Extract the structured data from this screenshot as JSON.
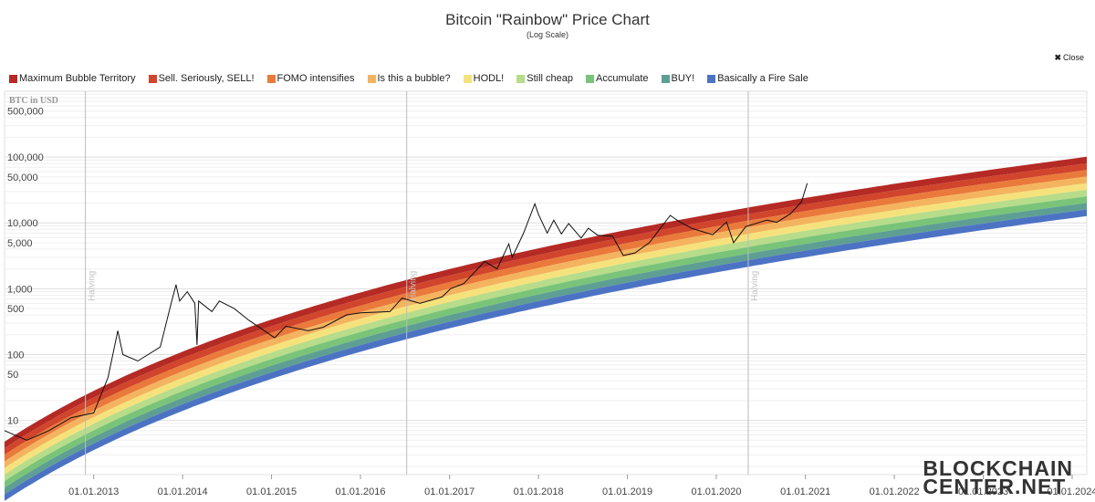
{
  "header": {
    "title": "Bitcoin \"Rainbow\" Price Chart",
    "subtitle": "(Log Scale)",
    "close_label": "Close"
  },
  "legend": [
    {
      "label": "Maximum Bubble Territory",
      "color": "#b52a25"
    },
    {
      "label": "Sell. Seriously, SELL!",
      "color": "#d0452c"
    },
    {
      "label": "FOMO intensifies",
      "color": "#ea7a3b"
    },
    {
      "label": "Is this a bubble?",
      "color": "#f4b45f"
    },
    {
      "label": "HODL!",
      "color": "#f6e27c"
    },
    {
      "label": "Still cheap",
      "color": "#b7dc8a"
    },
    {
      "label": "Accumulate",
      "color": "#79c478"
    },
    {
      "label": "BUY!",
      "color": "#5f9f93"
    },
    {
      "label": "Basically a Fire Sale",
      "color": "#4c73c3"
    }
  ],
  "watermark": {
    "line1": "BLOCKCHAIN",
    "line2": "CENTER.NET"
  },
  "chart_data": {
    "type": "line",
    "ylabel": "BTC in USD",
    "y_scale": "log",
    "y_ticks": [
      10,
      50,
      100,
      500,
      1000,
      5000,
      10000,
      50000,
      100000,
      500000
    ],
    "y_tick_labels": [
      "10",
      "50",
      "100",
      "500",
      "1,000",
      "5,000",
      "10,000",
      "50,000",
      "100,000",
      "500,000"
    ],
    "x_ticks": [
      "2013-01-01",
      "2014-01-01",
      "2015-01-01",
      "2016-01-01",
      "2017-01-01",
      "2018-01-01",
      "2019-01-01",
      "2020-01-01",
      "2021-01-01",
      "2022-01-01",
      "2023-01-01",
      "2024-01-01"
    ],
    "x_tick_labels": [
      "01.01.2013",
      "01.01.2014",
      "01.01.2015",
      "01.01.2016",
      "01.01.2017",
      "01.01.2018",
      "01.01.2019",
      "01.01.2020",
      "01.01.2021",
      "01.01.2022",
      "01.01.2023",
      "01.01.2024"
    ],
    "xlim": [
      "2012-01-01",
      "2024-03-01"
    ],
    "halvings": [
      {
        "date": "2012-11-28",
        "label": "Halving"
      },
      {
        "date": "2016-07-09",
        "label": "Halving"
      },
      {
        "date": "2020-05-11",
        "label": "Halving"
      },
      {
        "date": "2024-04-01",
        "label": "Halving"
      }
    ],
    "grid": true,
    "series": [
      {
        "name": "BTC price",
        "color": "#111111",
        "points": [
          [
            "2012-01-01",
            7
          ],
          [
            "2012-04-01",
            5
          ],
          [
            "2012-07-01",
            7
          ],
          [
            "2012-10-01",
            11
          ],
          [
            "2013-01-01",
            13
          ],
          [
            "2013-03-01",
            45
          ],
          [
            "2013-04-10",
            230
          ],
          [
            "2013-05-01",
            100
          ],
          [
            "2013-07-01",
            80
          ],
          [
            "2013-10-01",
            130
          ],
          [
            "2013-11-15",
            600
          ],
          [
            "2013-12-05",
            1150
          ],
          [
            "2013-12-20",
            650
          ],
          [
            "2014-01-20",
            900
          ],
          [
            "2014-02-20",
            600
          ],
          [
            "2014-03-01",
            140
          ],
          [
            "2014-03-08",
            650
          ],
          [
            "2014-05-01",
            450
          ],
          [
            "2014-06-01",
            650
          ],
          [
            "2014-08-01",
            500
          ],
          [
            "2014-10-01",
            330
          ],
          [
            "2015-01-14",
            180
          ],
          [
            "2015-03-01",
            270
          ],
          [
            "2015-06-01",
            230
          ],
          [
            "2015-08-01",
            260
          ],
          [
            "2015-11-05",
            400
          ],
          [
            "2016-01-01",
            430
          ],
          [
            "2016-05-01",
            450
          ],
          [
            "2016-06-20",
            720
          ],
          [
            "2016-09-01",
            600
          ],
          [
            "2016-12-01",
            750
          ],
          [
            "2017-01-05",
            1000
          ],
          [
            "2017-03-01",
            1200
          ],
          [
            "2017-05-25",
            2600
          ],
          [
            "2017-07-15",
            2000
          ],
          [
            "2017-09-01",
            4800
          ],
          [
            "2017-09-15",
            3000
          ],
          [
            "2017-11-01",
            7000
          ],
          [
            "2017-12-17",
            19500
          ],
          [
            "2018-01-01",
            13500
          ],
          [
            "2018-02-06",
            7000
          ],
          [
            "2018-03-05",
            11000
          ],
          [
            "2018-04-05",
            6800
          ],
          [
            "2018-05-05",
            9800
          ],
          [
            "2018-06-25",
            5900
          ],
          [
            "2018-07-25",
            8300
          ],
          [
            "2018-09-01",
            6500
          ],
          [
            "2018-11-01",
            6300
          ],
          [
            "2018-12-15",
            3200
          ],
          [
            "2019-02-01",
            3500
          ],
          [
            "2019-04-01",
            5000
          ],
          [
            "2019-06-26",
            13000
          ],
          [
            "2019-08-01",
            10500
          ],
          [
            "2019-09-25",
            8200
          ],
          [
            "2019-12-17",
            6600
          ],
          [
            "2020-02-12",
            10300
          ],
          [
            "2020-03-12",
            5000
          ],
          [
            "2020-05-01",
            8800
          ],
          [
            "2020-07-27",
            11000
          ],
          [
            "2020-09-05",
            10200
          ],
          [
            "2020-11-01",
            13800
          ],
          [
            "2020-12-16",
            21000
          ],
          [
            "2021-01-08",
            40000
          ]
        ]
      }
    ],
    "bands": [
      {
        "label": "Maximum Bubble Territory",
        "color": "#b52a25"
      },
      {
        "label": "Sell. Seriously, SELL!",
        "color": "#d0452c"
      },
      {
        "label": "FOMO intensifies",
        "color": "#ea7a3b"
      },
      {
        "label": "Is this a bubble?",
        "color": "#f4b45f"
      },
      {
        "label": "HODL!",
        "color": "#f6e27c"
      },
      {
        "label": "Still cheap",
        "color": "#b7dc8a"
      },
      {
        "label": "Accumulate",
        "color": "#79c478"
      },
      {
        "label": "BUY!",
        "color": "#5f9f93"
      },
      {
        "label": "Basically a Fire Sale",
        "color": "#4c73c3"
      }
    ]
  }
}
